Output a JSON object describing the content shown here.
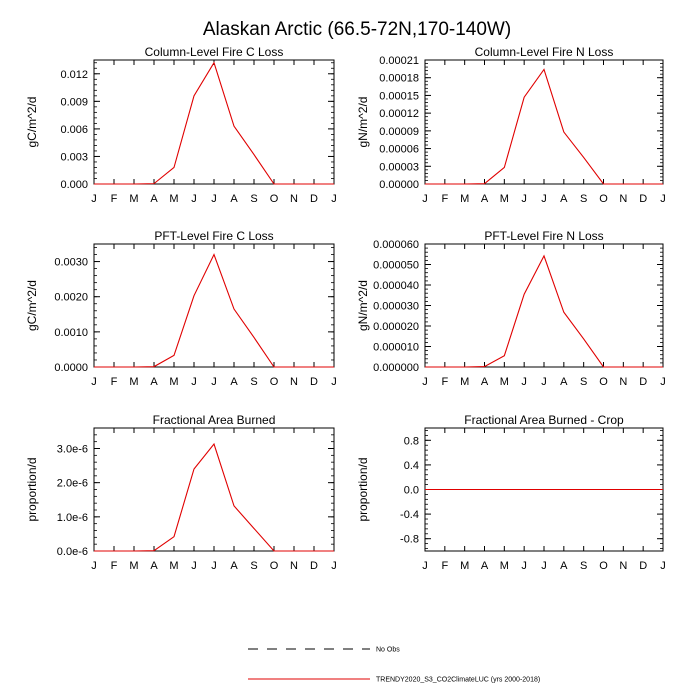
{
  "figure_title": "Alaskan Arctic (66.5-72N,170-140W)",
  "legend": [
    {
      "label": "No Obs",
      "style": "dashed",
      "color": "#000000"
    },
    {
      "label": "TRENDY2020_S3_CO2ClimateLUC (yrs 2000-2018)",
      "style": "solid",
      "color": "#e00000"
    }
  ],
  "colors": {
    "series": "#e00000",
    "axis": "#000000",
    "zero_line": "#e00000"
  },
  "chart_data": [
    {
      "type": "line",
      "title": "Column-Level Fire C Loss",
      "ylabel": "gC/m^2/d",
      "xlabel": "",
      "categories": [
        "J",
        "F",
        "M",
        "A",
        "M",
        "J",
        "J",
        "A",
        "S",
        "O",
        "N",
        "D",
        "J"
      ],
      "ylim": [
        0,
        0.0135
      ],
      "yticks": [
        0,
        0.003,
        0.006,
        0.009,
        0.012
      ],
      "ytick_labels": [
        "0.000",
        "0.003",
        "0.006",
        "0.009",
        "0.012"
      ],
      "series": [
        {
          "name": "TRENDY2020_S3_CO2ClimateLUC (yrs 2000-2018)",
          "values": [
            0,
            0,
            0,
            4e-05,
            0.0018,
            0.0096,
            0.0132,
            0.0063,
            0.0032,
            0,
            0,
            0,
            0
          ]
        }
      ]
    },
    {
      "type": "line",
      "title": "Column-Level Fire N Loss",
      "ylabel": "gN/m^2/d",
      "xlabel": "",
      "categories": [
        "J",
        "F",
        "M",
        "A",
        "M",
        "J",
        "J",
        "A",
        "S",
        "O",
        "N",
        "D",
        "J"
      ],
      "ylim": [
        0,
        0.00021
      ],
      "yticks": [
        0,
        3e-05,
        6e-05,
        9e-05,
        0.00012,
        0.00015,
        0.00018,
        0.00021
      ],
      "ytick_labels": [
        "0.00000",
        "0.00003",
        "0.00006",
        "0.00009",
        "0.00012",
        "0.00015",
        "0.00018",
        "0.00021"
      ],
      "series": [
        {
          "name": "TRENDY2020_S3_CO2ClimateLUC (yrs 2000-2018)",
          "values": [
            0,
            0,
            0,
            5e-07,
            2.8e-05,
            0.000147,
            0.000194,
            8.8e-05,
            4.5e-05,
            0,
            0,
            0,
            0
          ]
        }
      ]
    },
    {
      "type": "line",
      "title": "PFT-Level Fire C Loss",
      "ylabel": "gC/m^2/d",
      "xlabel": "",
      "categories": [
        "J",
        "F",
        "M",
        "A",
        "M",
        "J",
        "J",
        "A",
        "S",
        "O",
        "N",
        "D",
        "J"
      ],
      "ylim": [
        0,
        0.0035
      ],
      "yticks": [
        0,
        0.001,
        0.002,
        0.003
      ],
      "ytick_labels": [
        "0.0000",
        "0.0010",
        "0.0020",
        "0.0030"
      ],
      "series": [
        {
          "name": "TRENDY2020_S3_CO2ClimateLUC (yrs 2000-2018)",
          "values": [
            0,
            0,
            0,
            1e-05,
            0.00033,
            0.00203,
            0.0032,
            0.00165,
            0.00084,
            0,
            0,
            0,
            0
          ]
        }
      ]
    },
    {
      "type": "line",
      "title": "PFT-Level Fire N Loss",
      "ylabel": "gN/m^2/d",
      "xlabel": "",
      "categories": [
        "J",
        "F",
        "M",
        "A",
        "M",
        "J",
        "J",
        "A",
        "S",
        "O",
        "N",
        "D",
        "J"
      ],
      "ylim": [
        0,
        6e-05
      ],
      "yticks": [
        0,
        1e-05,
        2e-05,
        3e-05,
        4e-05,
        5e-05,
        6e-05
      ],
      "ytick_labels": [
        "0.000000",
        "0.000010",
        "0.000020",
        "0.000030",
        "0.000040",
        "0.000050",
        "0.000060"
      ],
      "series": [
        {
          "name": "TRENDY2020_S3_CO2ClimateLUC (yrs 2000-2018)",
          "values": [
            0,
            0,
            0,
            2e-07,
            5.5e-06,
            3.55e-05,
            5.42e-05,
            2.67e-05,
            1.37e-05,
            0,
            0,
            0,
            0
          ]
        }
      ]
    },
    {
      "type": "line",
      "title": "Fractional Area Burned",
      "ylabel": "proportion/d",
      "xlabel": "",
      "categories": [
        "J",
        "F",
        "M",
        "A",
        "M",
        "J",
        "J",
        "A",
        "S",
        "O",
        "N",
        "D",
        "J"
      ],
      "ylim": [
        0,
        3.6e-06
      ],
      "yticks": [
        0,
        1e-06,
        2e-06,
        3e-06
      ],
      "ytick_labels": [
        "0.0e-6",
        "1.0e-6",
        "2.0e-6",
        "3.0e-6"
      ],
      "series": [
        {
          "name": "TRENDY2020_S3_CO2ClimateLUC (yrs 2000-2018)",
          "values": [
            0,
            0,
            0,
            1e-08,
            4.2e-07,
            2.4e-06,
            3.13e-06,
            1.32e-06,
            6.6e-07,
            0,
            0,
            0,
            0
          ]
        }
      ]
    },
    {
      "type": "line",
      "title": "Fractional Area Burned - Crop",
      "ylabel": "proportion/d",
      "xlabel": "",
      "categories": [
        "J",
        "F",
        "M",
        "A",
        "M",
        "J",
        "J",
        "A",
        "S",
        "O",
        "N",
        "D",
        "J"
      ],
      "ylim": [
        -1.0,
        1.0
      ],
      "yticks": [
        -0.8,
        -0.4,
        0,
        0.4,
        0.8
      ],
      "ytick_labels": [
        "-0.8",
        "-0.4",
        "0.0",
        "0.4",
        "0.8"
      ],
      "series": [
        {
          "name": "TRENDY2020_S3_CO2ClimateLUC (yrs 2000-2018)",
          "values": [
            0,
            0,
            0,
            0,
            0,
            0,
            0,
            0,
            0,
            0,
            0,
            0,
            0
          ]
        }
      ]
    }
  ]
}
